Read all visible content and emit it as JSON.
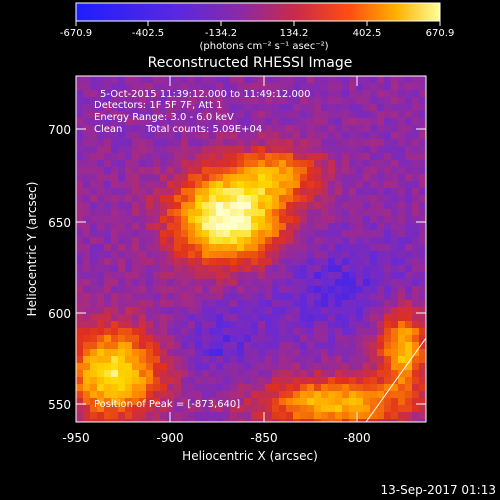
{
  "colorbar": {
    "tick_labels": [
      "-670.9",
      "-402.5",
      "-134.2",
      "134.2",
      "402.5",
      "670.9"
    ],
    "unit_label": "(photons cm⁻² s⁻¹ asec⁻²)"
  },
  "title": "Reconstructed RHESSI Image",
  "info": {
    "line1": "5-Oct-2015 11:39:12.000 to 11:49:12.000",
    "line2": "Detectors: 1F 5F 7F, Att 1",
    "line3": "Energy Range: 3.0 - 6.0 keV",
    "line4_left": "Clean",
    "line4_right": "Total counts: 5.09E+04"
  },
  "peak_text": "Position of Peak = [-873,640]",
  "axes": {
    "xlabel": "Heliocentric X (arcsec)",
    "ylabel": "Heliocentric Y (arcsec)",
    "x_ticks": [
      "-950",
      "-900",
      "-850",
      "-800"
    ],
    "y_ticks": [
      "700",
      "650",
      "600",
      "550"
    ]
  },
  "timestamp": "13-Sep-2017 01:13",
  "colors": {
    "background": "#000000",
    "colormap": [
      "#1e1eff",
      "#6a2ad2",
      "#a02a8c",
      "#e0301e",
      "#ff8a00",
      "#ffd900",
      "#ffffcc"
    ]
  }
}
